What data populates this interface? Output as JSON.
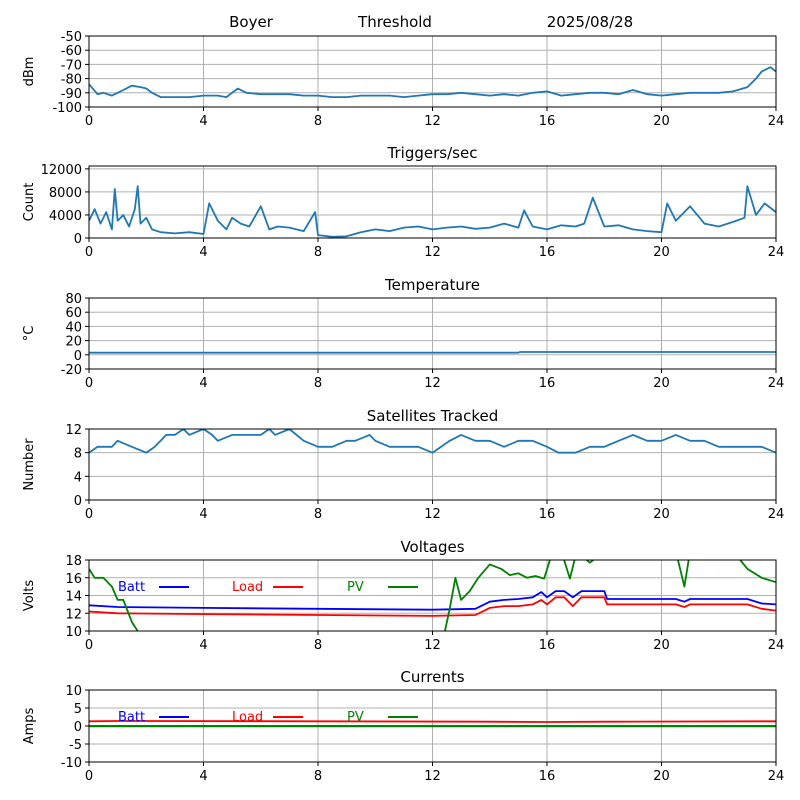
{
  "header": {
    "site": "Boyer",
    "mode": "Threshold",
    "date": "2025/08/28"
  },
  "colors": {
    "series": "#1f77b4",
    "batt": "#0000ff",
    "load": "#ff0000",
    "pv": "#008000",
    "grid": "#b0b0b0"
  },
  "chart_data": [
    {
      "id": "threshold",
      "type": "line",
      "title": "",
      "ylabel": "dBm",
      "xlim": [
        0,
        24
      ],
      "xticks": [
        0,
        4,
        8,
        12,
        16,
        20,
        24
      ],
      "ylim": [
        -100,
        -50
      ],
      "yticks": [
        -100,
        -90,
        -80,
        -70,
        -60,
        -50
      ],
      "grid": true,
      "series": [
        {
          "color": "#1f77b4",
          "x": [
            0,
            0.3,
            0.5,
            0.8,
            1.0,
            1.2,
            1.5,
            1.8,
            2.0,
            2.2,
            2.5,
            3.0,
            3.5,
            4.0,
            4.5,
            4.8,
            5.0,
            5.2,
            5.5,
            6.0,
            6.5,
            7.0,
            7.5,
            8.0,
            8.5,
            9.0,
            9.5,
            10.0,
            10.5,
            11.0,
            11.5,
            12.0,
            12.5,
            13.0,
            13.5,
            14.0,
            14.5,
            15.0,
            15.5,
            16.0,
            16.5,
            17.0,
            17.5,
            18.0,
            18.5,
            19.0,
            19.5,
            20.0,
            20.5,
            21.0,
            21.5,
            22.0,
            22.5,
            23.0,
            23.3,
            23.5,
            23.8,
            24.0
          ],
          "y": [
            -84,
            -91,
            -90,
            -92,
            -90,
            -88,
            -85,
            -86,
            -87,
            -90,
            -93,
            -93,
            -93,
            -92,
            -92,
            -93,
            -90,
            -87,
            -90,
            -91,
            -91,
            -91,
            -92,
            -92,
            -93,
            -93,
            -92,
            -92,
            -92,
            -93,
            -92,
            -91,
            -91,
            -90,
            -91,
            -92,
            -91,
            -92,
            -90,
            -89,
            -92,
            -91,
            -90,
            -90,
            -91,
            -88,
            -91,
            -92,
            -91,
            -90,
            -90,
            -90,
            -89,
            -86,
            -80,
            -75,
            -72,
            -75
          ]
        }
      ]
    },
    {
      "id": "triggers",
      "type": "line",
      "title": "Triggers/sec",
      "ylabel": "Count",
      "xlim": [
        0,
        24
      ],
      "xticks": [
        0,
        4,
        8,
        12,
        16,
        20,
        24
      ],
      "ylim": [
        0,
        12500
      ],
      "yticks": [
        0,
        4000,
        8000,
        12000
      ],
      "grid": true,
      "series": [
        {
          "color": "#1f77b4",
          "x": [
            0,
            0.2,
            0.4,
            0.6,
            0.8,
            0.9,
            1.0,
            1.2,
            1.4,
            1.6,
            1.7,
            1.8,
            2.0,
            2.2,
            2.5,
            3.0,
            3.5,
            4.0,
            4.2,
            4.5,
            4.8,
            5.0,
            5.3,
            5.6,
            6.0,
            6.3,
            6.6,
            7.0,
            7.5,
            7.9,
            8.0,
            8.5,
            9.0,
            9.5,
            10.0,
            10.5,
            11.0,
            11.5,
            12.0,
            12.5,
            13.0,
            13.5,
            14.0,
            14.5,
            15.0,
            15.2,
            15.5,
            16.0,
            16.5,
            17.0,
            17.3,
            17.6,
            18.0,
            18.5,
            19.0,
            19.5,
            20.0,
            20.2,
            20.5,
            21.0,
            21.5,
            22.0,
            22.5,
            22.9,
            23.0,
            23.3,
            23.6,
            24.0
          ],
          "y": [
            3000,
            5000,
            2500,
            4500,
            1500,
            8500,
            3000,
            4000,
            2000,
            5000,
            9000,
            2500,
            3500,
            1500,
            1000,
            800,
            1000,
            700,
            6000,
            3000,
            1500,
            3500,
            2500,
            2000,
            5500,
            1500,
            2000,
            1800,
            1200,
            4500,
            500,
            200,
            300,
            1000,
            1500,
            1200,
            1800,
            2000,
            1500,
            1800,
            2000,
            1600,
            1800,
            2500,
            1800,
            4800,
            2000,
            1500,
            2200,
            2000,
            2500,
            7000,
            2000,
            2200,
            1500,
            1200,
            1000,
            6000,
            3000,
            5500,
            2500,
            2000,
            2800,
            3500,
            9000,
            4000,
            6000,
            4500
          ]
        }
      ]
    },
    {
      "id": "temperature",
      "type": "line",
      "title": "Temperature",
      "ylabel": "°C",
      "xlim": [
        0,
        24
      ],
      "xticks": [
        0,
        4,
        8,
        12,
        16,
        20,
        24
      ],
      "ylim": [
        -20,
        80
      ],
      "yticks": [
        -20,
        0,
        20,
        40,
        60,
        80
      ],
      "grid": true,
      "series": [
        {
          "color": "#1f77b4",
          "x": [
            0,
            15,
            15.05,
            24
          ],
          "y": [
            3,
            3,
            4,
            4
          ]
        }
      ]
    },
    {
      "id": "satellites",
      "type": "line",
      "title": "Satellites Tracked",
      "ylabel": "Number",
      "xlim": [
        0,
        24
      ],
      "xticks": [
        0,
        4,
        8,
        12,
        16,
        20,
        24
      ],
      "ylim": [
        0,
        12
      ],
      "yticks": [
        0,
        4,
        8,
        12
      ],
      "grid": true,
      "series": [
        {
          "color": "#1f77b4",
          "x": [
            0,
            0.3,
            0.8,
            1.0,
            1.5,
            2.0,
            2.3,
            2.5,
            2.7,
            3.0,
            3.3,
            3.5,
            4.0,
            4.3,
            4.5,
            5.0,
            5.5,
            6.0,
            6.3,
            6.5,
            7.0,
            7.5,
            8.0,
            8.5,
            9.0,
            9.3,
            9.8,
            10.0,
            10.5,
            11.0,
            11.5,
            12.0,
            12.3,
            12.6,
            13.0,
            13.5,
            14.0,
            14.5,
            15.0,
            15.5,
            16.0,
            16.4,
            17.0,
            17.5,
            18.0,
            18.5,
            19.0,
            19.5,
            20.0,
            20.5,
            21.0,
            21.5,
            22.0,
            22.5,
            23.0,
            23.5,
            24.0
          ],
          "y": [
            8,
            9,
            9,
            10,
            9,
            8,
            9,
            10,
            11,
            11,
            12,
            11,
            12,
            11,
            10,
            11,
            11,
            11,
            12,
            11,
            12,
            10,
            9,
            9,
            10,
            10,
            11,
            10,
            9,
            9,
            9,
            8,
            9,
            10,
            11,
            10,
            10,
            9,
            10,
            10,
            9,
            8,
            8,
            9,
            9,
            10,
            11,
            10,
            10,
            11,
            10,
            10,
            9,
            9,
            9,
            9,
            8
          ]
        }
      ]
    },
    {
      "id": "voltages",
      "type": "line",
      "title": "Voltages",
      "ylabel": "Volts",
      "xlim": [
        0,
        24
      ],
      "xticks": [
        0,
        4,
        8,
        12,
        16,
        20,
        24
      ],
      "ylim": [
        10,
        18
      ],
      "yticks": [
        10,
        12,
        14,
        16,
        18
      ],
      "grid": true,
      "legend": [
        {
          "label": "Batt",
          "color": "#0000ff"
        },
        {
          "label": "Load",
          "color": "#ff0000"
        },
        {
          "label": "PV",
          "color": "#008000"
        }
      ],
      "series": [
        {
          "name": "Batt",
          "color": "#0000ff",
          "x": [
            0,
            1,
            4,
            8,
            12,
            13.5,
            14,
            14.5,
            15,
            15.5,
            15.8,
            16,
            16.3,
            16.6,
            16.9,
            17.2,
            18,
            18.1,
            20,
            20.5,
            20.8,
            21,
            23,
            23.5,
            24
          ],
          "y": [
            12.9,
            12.7,
            12.6,
            12.5,
            12.4,
            12.5,
            13.3,
            13.5,
            13.6,
            13.8,
            14.4,
            13.8,
            14.5,
            14.5,
            13.8,
            14.5,
            14.5,
            13.6,
            13.6,
            13.6,
            13.3,
            13.6,
            13.6,
            13.1,
            13.0
          ]
        },
        {
          "name": "Load",
          "color": "#ff0000",
          "x": [
            0,
            1,
            4,
            8,
            12,
            13.5,
            14,
            14.5,
            15,
            15.5,
            15.8,
            16,
            16.3,
            16.6,
            16.9,
            17.2,
            18,
            18.1,
            20,
            20.5,
            20.8,
            21,
            23,
            23.5,
            24
          ],
          "y": [
            12.2,
            12.0,
            11.9,
            11.8,
            11.7,
            11.8,
            12.6,
            12.8,
            12.8,
            13.0,
            13.5,
            13.0,
            13.8,
            13.8,
            12.8,
            13.8,
            13.8,
            13.0,
            13.0,
            13.0,
            12.7,
            13.0,
            13.0,
            12.5,
            12.3
          ]
        },
        {
          "name": "PV",
          "color": "#008000",
          "x": [
            0,
            0.2,
            0.5,
            0.8,
            1.0,
            1.2,
            1.5,
            1.8,
            12.4,
            12.6,
            12.8,
            13.0,
            13.3,
            13.6,
            14.0,
            14.4,
            14.7,
            15.0,
            15.3,
            15.6,
            15.9,
            16.2,
            16.5,
            16.8,
            17.0,
            17.2,
            17.5,
            18.0,
            20.5,
            20.8,
            21.0,
            22.5,
            23.0,
            23.5,
            24.0
          ],
          "y": [
            17.0,
            16.0,
            16.0,
            15.0,
            13.5,
            13.5,
            11.0,
            9.5,
            9.5,
            12.5,
            16.0,
            13.5,
            14.5,
            16.0,
            17.5,
            17.0,
            16.3,
            16.5,
            16.0,
            16.2,
            15.9,
            19.0,
            19.0,
            15.9,
            18.5,
            18.5,
            17.7,
            19.0,
            19.0,
            15.0,
            19.0,
            19.0,
            17.0,
            16.0,
            15.5
          ]
        }
      ]
    },
    {
      "id": "currents",
      "type": "line",
      "title": "Currents",
      "ylabel": "Amps",
      "xlim": [
        0,
        24
      ],
      "xticks": [
        0,
        4,
        8,
        12,
        16,
        20,
        24
      ],
      "ylim": [
        -10,
        10
      ],
      "yticks": [
        -10,
        -5,
        0,
        5,
        10
      ],
      "grid": true,
      "legend": [
        {
          "label": "Batt",
          "color": "#0000ff"
        },
        {
          "label": "Load",
          "color": "#ff0000"
        },
        {
          "label": "PV",
          "color": "#008000"
        }
      ],
      "series": [
        {
          "name": "Batt",
          "color": "#0000ff",
          "x": [
            0,
            24
          ],
          "y": [
            0,
            0
          ]
        },
        {
          "name": "Load",
          "color": "#ff0000",
          "x": [
            0,
            1,
            8,
            14,
            16,
            18,
            24
          ],
          "y": [
            1.3,
            1.4,
            1.3,
            1.2,
            1.1,
            1.2,
            1.3
          ]
        },
        {
          "name": "PV",
          "color": "#008000",
          "x": [
            0,
            24
          ],
          "y": [
            -0.1,
            -0.1
          ]
        }
      ]
    }
  ]
}
